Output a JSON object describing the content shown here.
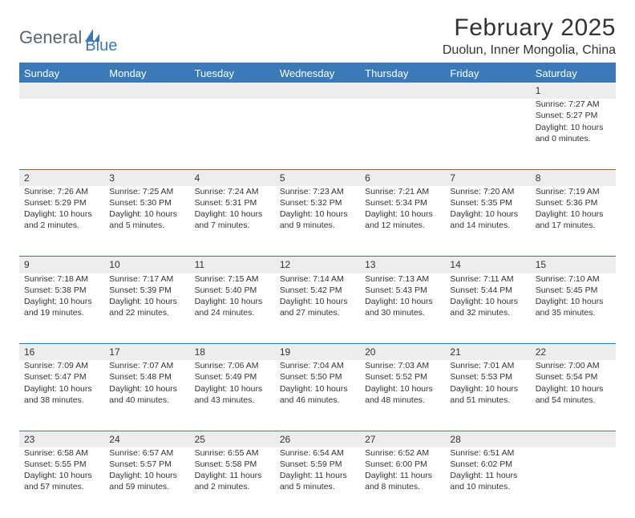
{
  "brand": {
    "part1": "General",
    "part2": "Blue"
  },
  "title": "February 2025",
  "location": "Duolun, Inner Mongolia, China",
  "colors": {
    "accent": "#3a7ab8",
    "header_text": "#ffffff",
    "daynum_bg": "#ededed",
    "text": "#333333",
    "logo_gray": "#5a6570"
  },
  "day_headers": [
    "Sunday",
    "Monday",
    "Tuesday",
    "Wednesday",
    "Thursday",
    "Friday",
    "Saturday"
  ],
  "weeks": [
    {
      "nums": [
        "",
        "",
        "",
        "",
        "",
        "",
        "1"
      ],
      "cells": [
        null,
        null,
        null,
        null,
        null,
        null,
        {
          "sunrise": "7:27 AM",
          "sunset": "5:27 PM",
          "dl1": "Daylight: 10 hours",
          "dl2": "and 0 minutes."
        }
      ]
    },
    {
      "nums": [
        "2",
        "3",
        "4",
        "5",
        "6",
        "7",
        "8"
      ],
      "cells": [
        {
          "sunrise": "7:26 AM",
          "sunset": "5:29 PM",
          "dl1": "Daylight: 10 hours",
          "dl2": "and 2 minutes."
        },
        {
          "sunrise": "7:25 AM",
          "sunset": "5:30 PM",
          "dl1": "Daylight: 10 hours",
          "dl2": "and 5 minutes."
        },
        {
          "sunrise": "7:24 AM",
          "sunset": "5:31 PM",
          "dl1": "Daylight: 10 hours",
          "dl2": "and 7 minutes."
        },
        {
          "sunrise": "7:23 AM",
          "sunset": "5:32 PM",
          "dl1": "Daylight: 10 hours",
          "dl2": "and 9 minutes."
        },
        {
          "sunrise": "7:21 AM",
          "sunset": "5:34 PM",
          "dl1": "Daylight: 10 hours",
          "dl2": "and 12 minutes."
        },
        {
          "sunrise": "7:20 AM",
          "sunset": "5:35 PM",
          "dl1": "Daylight: 10 hours",
          "dl2": "and 14 minutes."
        },
        {
          "sunrise": "7:19 AM",
          "sunset": "5:36 PM",
          "dl1": "Daylight: 10 hours",
          "dl2": "and 17 minutes."
        }
      ]
    },
    {
      "nums": [
        "9",
        "10",
        "11",
        "12",
        "13",
        "14",
        "15"
      ],
      "cells": [
        {
          "sunrise": "7:18 AM",
          "sunset": "5:38 PM",
          "dl1": "Daylight: 10 hours",
          "dl2": "and 19 minutes."
        },
        {
          "sunrise": "7:17 AM",
          "sunset": "5:39 PM",
          "dl1": "Daylight: 10 hours",
          "dl2": "and 22 minutes."
        },
        {
          "sunrise": "7:15 AM",
          "sunset": "5:40 PM",
          "dl1": "Daylight: 10 hours",
          "dl2": "and 24 minutes."
        },
        {
          "sunrise": "7:14 AM",
          "sunset": "5:42 PM",
          "dl1": "Daylight: 10 hours",
          "dl2": "and 27 minutes."
        },
        {
          "sunrise": "7:13 AM",
          "sunset": "5:43 PM",
          "dl1": "Daylight: 10 hours",
          "dl2": "and 30 minutes."
        },
        {
          "sunrise": "7:11 AM",
          "sunset": "5:44 PM",
          "dl1": "Daylight: 10 hours",
          "dl2": "and 32 minutes."
        },
        {
          "sunrise": "7:10 AM",
          "sunset": "5:45 PM",
          "dl1": "Daylight: 10 hours",
          "dl2": "and 35 minutes."
        }
      ]
    },
    {
      "nums": [
        "16",
        "17",
        "18",
        "19",
        "20",
        "21",
        "22"
      ],
      "cells": [
        {
          "sunrise": "7:09 AM",
          "sunset": "5:47 PM",
          "dl1": "Daylight: 10 hours",
          "dl2": "and 38 minutes."
        },
        {
          "sunrise": "7:07 AM",
          "sunset": "5:48 PM",
          "dl1": "Daylight: 10 hours",
          "dl2": "and 40 minutes."
        },
        {
          "sunrise": "7:06 AM",
          "sunset": "5:49 PM",
          "dl1": "Daylight: 10 hours",
          "dl2": "and 43 minutes."
        },
        {
          "sunrise": "7:04 AM",
          "sunset": "5:50 PM",
          "dl1": "Daylight: 10 hours",
          "dl2": "and 46 minutes."
        },
        {
          "sunrise": "7:03 AM",
          "sunset": "5:52 PM",
          "dl1": "Daylight: 10 hours",
          "dl2": "and 48 minutes."
        },
        {
          "sunrise": "7:01 AM",
          "sunset": "5:53 PM",
          "dl1": "Daylight: 10 hours",
          "dl2": "and 51 minutes."
        },
        {
          "sunrise": "7:00 AM",
          "sunset": "5:54 PM",
          "dl1": "Daylight: 10 hours",
          "dl2": "and 54 minutes."
        }
      ]
    },
    {
      "nums": [
        "23",
        "24",
        "25",
        "26",
        "27",
        "28",
        ""
      ],
      "cells": [
        {
          "sunrise": "6:58 AM",
          "sunset": "5:55 PM",
          "dl1": "Daylight: 10 hours",
          "dl2": "and 57 minutes."
        },
        {
          "sunrise": "6:57 AM",
          "sunset": "5:57 PM",
          "dl1": "Daylight: 10 hours",
          "dl2": "and 59 minutes."
        },
        {
          "sunrise": "6:55 AM",
          "sunset": "5:58 PM",
          "dl1": "Daylight: 11 hours",
          "dl2": "and 2 minutes."
        },
        {
          "sunrise": "6:54 AM",
          "sunset": "5:59 PM",
          "dl1": "Daylight: 11 hours",
          "dl2": "and 5 minutes."
        },
        {
          "sunrise": "6:52 AM",
          "sunset": "6:00 PM",
          "dl1": "Daylight: 11 hours",
          "dl2": "and 8 minutes."
        },
        {
          "sunrise": "6:51 AM",
          "sunset": "6:02 PM",
          "dl1": "Daylight: 11 hours",
          "dl2": "and 10 minutes."
        },
        null
      ]
    }
  ],
  "labels": {
    "sunrise": "Sunrise: ",
    "sunset": "Sunset: "
  }
}
